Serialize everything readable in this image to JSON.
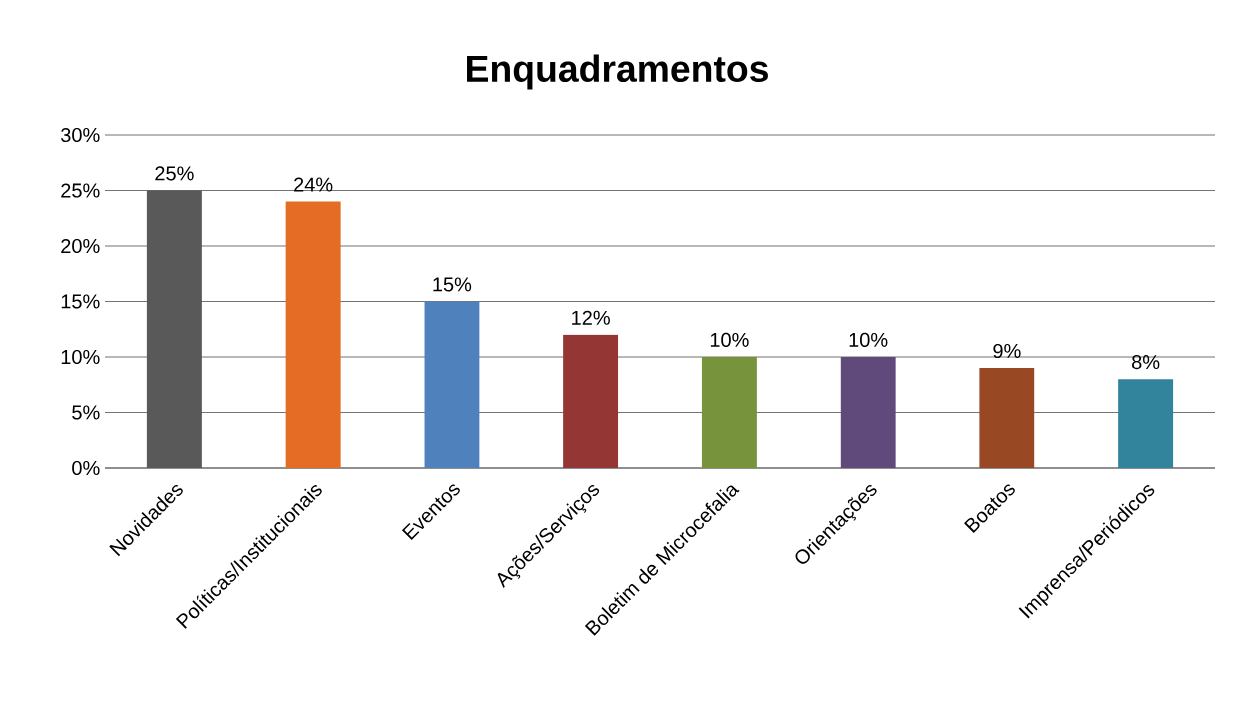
{
  "chart_data": {
    "type": "bar",
    "title": "Enquadramentos",
    "categories": [
      "Novidades",
      "Políticas/Institucionais",
      "Eventos",
      "Ações/Serviços",
      "Boletim de Microcefalia",
      "Orientações",
      "Boatos",
      "Imprensa/Periódicos"
    ],
    "values": [
      25,
      24,
      15,
      12,
      10,
      10,
      9,
      8
    ],
    "value_labels": [
      "25%",
      "24%",
      "15%",
      "12%",
      "10%",
      "10%",
      "9%",
      "8%"
    ],
    "colors": [
      "#595959",
      "#e46c25",
      "#4f81bd",
      "#943634",
      "#77933c",
      "#604a7b",
      "#984823",
      "#31849b"
    ],
    "ylim": [
      0,
      30
    ],
    "yticks": [
      {
        "value": 0,
        "label": "0%"
      },
      {
        "value": 5,
        "label": "5%"
      },
      {
        "value": 10,
        "label": "10%"
      },
      {
        "value": 15,
        "label": "15%"
      },
      {
        "value": 20,
        "label": "20%"
      },
      {
        "value": 25,
        "label": "25%"
      },
      {
        "value": 30,
        "label": "30%"
      }
    ],
    "grid": "y"
  }
}
